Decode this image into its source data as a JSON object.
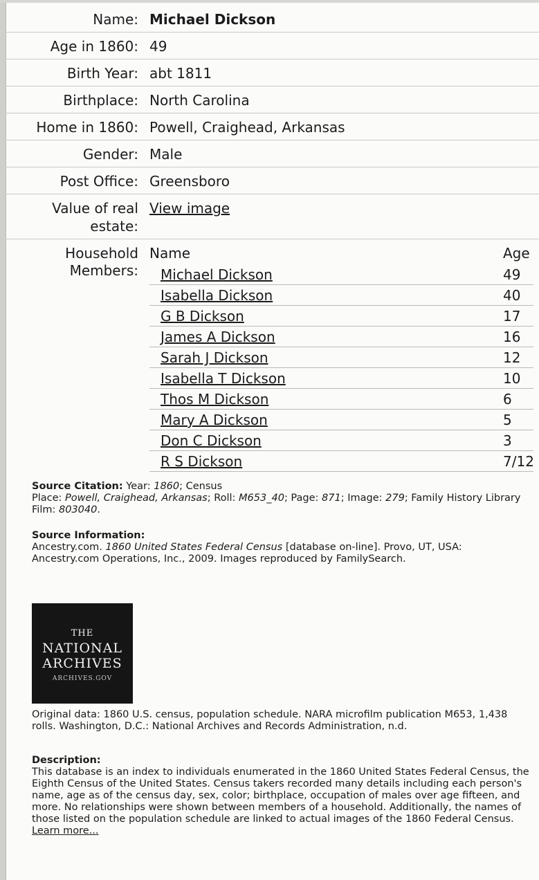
{
  "record": {
    "name_label": "Name:",
    "name_value": "Michael Dickson",
    "age_label": "Age in 1860:",
    "age_value": "49",
    "birth_year_label": "Birth Year:",
    "birth_year_value": "abt 1811",
    "birthplace_label": "Birthplace:",
    "birthplace_value": "North Carolina",
    "home_label": "Home in 1860:",
    "home_value": "Powell, Craighead, Arkansas",
    "gender_label": "Gender:",
    "gender_value": "Male",
    "post_office_label": "Post Office:",
    "post_office_value": "Greensboro",
    "real_estate_label_1": "Value of real",
    "real_estate_label_2": "estate:",
    "real_estate_link": "View image"
  },
  "household": {
    "label_1": "Household",
    "label_2": "Members:",
    "col_name": "Name",
    "col_age": "Age",
    "members": [
      {
        "name": "Michael Dickson",
        "age": "49"
      },
      {
        "name": "Isabella Dickson",
        "age": "40"
      },
      {
        "name": "G B Dickson",
        "age": "17"
      },
      {
        "name": "James A Dickson",
        "age": "16"
      },
      {
        "name": "Sarah J Dickson",
        "age": "12"
      },
      {
        "name": "Isabella T Dickson",
        "age": "10"
      },
      {
        "name": "Thos M Dickson",
        "age": "6"
      },
      {
        "name": "Mary A Dickson",
        "age": "5"
      },
      {
        "name": "Don C Dickson",
        "age": "3"
      },
      {
        "name": "R S Dickson",
        "age": "7/12"
      }
    ]
  },
  "source_citation": {
    "title": "Source Citation:",
    "year_label": "Year: ",
    "year": "1860",
    "year_suffix": "; Census",
    "place_label": "Place: ",
    "place": "Powell, Craighead, Arkansas",
    "roll_label": "; Roll: ",
    "roll": "M653_40",
    "page_label": "; Page: ",
    "page": "871",
    "image_label": "; Image: ",
    "image": "279",
    "film_label": "; Family History Library Film: ",
    "film": "803040",
    "end": "."
  },
  "source_information": {
    "title": "Source Information:",
    "text_1": "Ancestry.com. ",
    "database": "1860 United States Federal Census",
    "text_2": " [database on-line]. Provo, UT, USA: Ancestry.com Operations, Inc., 2009. Images reproduced by FamilySearch."
  },
  "logo": {
    "line1": "THE",
    "line2": "NATIONAL",
    "line3": "ARCHIVES",
    "line4": "ARCHIVES.GOV"
  },
  "original_data": "Original data: 1860 U.S. census, population schedule. NARA microfilm publication M653, 1,438 rolls. Washington, D.C.: National Archives and Records Administration, n.d.",
  "description": {
    "title": "Description:",
    "text": "This database is an index to individuals enumerated in the 1860 United States Federal Census, the Eighth Census of the United States. Census takers recorded many details including each person's name, age as of the census day, sex, color; birthplace, occupation of males over age fifteen, and more. No relationships were shown between members of a household. Additionally, the names of those listed on the population schedule are linked to actual images of the 1860 Federal Census.",
    "learn_more": "Learn more..."
  }
}
